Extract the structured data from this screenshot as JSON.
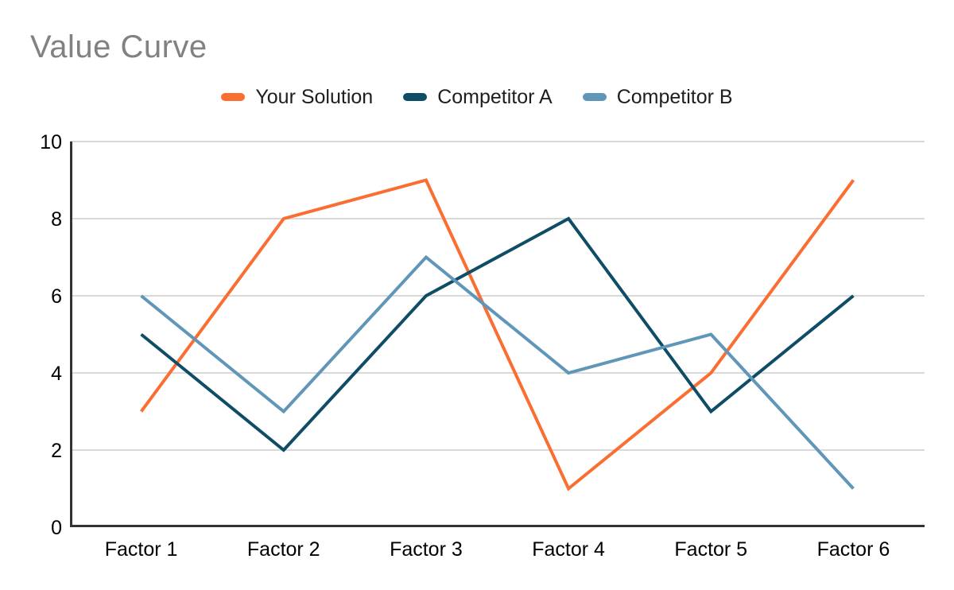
{
  "chart_data": {
    "type": "line",
    "title": "Value Curve",
    "xlabel": "",
    "ylabel": "",
    "categories": [
      "Factor 1",
      "Factor 2",
      "Factor 3",
      "Factor 4",
      "Factor 5",
      "Factor 6"
    ],
    "series": [
      {
        "name": "Your Solution",
        "color": "#fa6e32",
        "values": [
          3,
          8,
          9,
          1,
          4,
          9
        ]
      },
      {
        "name": "Competitor A",
        "color": "#0f4d66",
        "values": [
          5,
          2,
          6,
          8,
          3,
          6
        ]
      },
      {
        "name": "Competitor B",
        "color": "#6096b8",
        "values": [
          6,
          3,
          7,
          4,
          5,
          1
        ]
      }
    ],
    "ylim": [
      0,
      10
    ],
    "yticks": [
      0,
      2,
      4,
      6,
      8,
      10
    ],
    "grid": true,
    "legend_position": "top"
  },
  "style": {
    "background": "#ffffff",
    "title_color": "#818181",
    "gridline_color": "#d9d9d9",
    "axis_color": "#333333",
    "tick_label_color": "#000000",
    "legend_text_color": "#1e1e1e",
    "line_width": 4,
    "tick_font_size": 25
  }
}
